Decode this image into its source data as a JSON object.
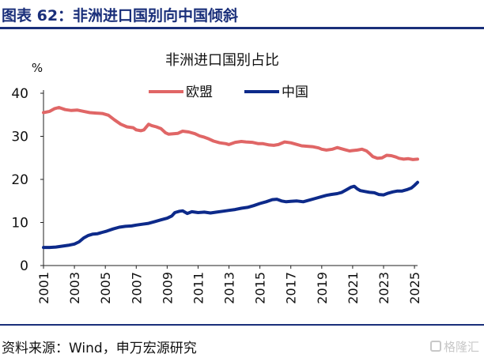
{
  "figure": {
    "title": "图表 62：非洲进口国别向中国倾斜",
    "source": "资料来源：Wind，申万宏源研究",
    "watermark": "格隆汇"
  },
  "colors": {
    "header": "#1a2f7a",
    "eu": "#e06666",
    "china": "#0d2a8a"
  },
  "chart_data": {
    "type": "line",
    "title": "非洲进口国别占比",
    "ylabel": "%",
    "xlabel": "",
    "ylim": [
      0,
      40
    ],
    "xlim": [
      2001,
      2025.2
    ],
    "yticks": [
      0,
      10,
      20,
      30,
      40
    ],
    "xticks": [
      "2001",
      "2003",
      "2005",
      "2007",
      "2009",
      "2011",
      "2013",
      "2015",
      "2017",
      "2019",
      "2021",
      "2023",
      "2025"
    ],
    "grid": false,
    "legend_position": "top-center",
    "series": [
      {
        "name": "欧盟",
        "x": [
          2001.0,
          2001.4,
          2001.7,
          2002.0,
          2002.4,
          2002.8,
          2003.2,
          2003.6,
          2004.0,
          2004.4,
          2004.8,
          2005.2,
          2005.6,
          2006.0,
          2006.4,
          2006.8,
          2007.0,
          2007.3,
          2007.5,
          2007.8,
          2008.0,
          2008.3,
          2008.6,
          2008.9,
          2009.1,
          2009.4,
          2009.7,
          2010.0,
          2010.4,
          2010.8,
          2011.1,
          2011.4,
          2011.7,
          2012.0,
          2012.4,
          2012.8,
          2013.0,
          2013.4,
          2013.8,
          2014.1,
          2014.5,
          2014.9,
          2015.2,
          2015.6,
          2015.9,
          2016.2,
          2016.6,
          2017.0,
          2017.3,
          2017.7,
          2018.0,
          2018.4,
          2018.8,
          2019.0,
          2019.3,
          2019.7,
          2020.0,
          2020.2,
          2020.5,
          2020.8,
          2021.0,
          2021.3,
          2021.6,
          2021.9,
          2022.1,
          2022.3,
          2022.6,
          2022.9,
          2023.2,
          2023.5,
          2023.8,
          2024.0,
          2024.3,
          2024.6,
          2024.9,
          2025.2
        ],
        "values": [
          35.5,
          35.8,
          36.4,
          36.7,
          36.2,
          36.0,
          36.1,
          35.8,
          35.5,
          35.4,
          35.3,
          34.9,
          33.8,
          32.8,
          32.2,
          32.0,
          31.5,
          31.3,
          31.5,
          32.8,
          32.5,
          32.2,
          31.8,
          30.8,
          30.5,
          30.6,
          30.7,
          31.2,
          31.0,
          30.6,
          30.1,
          29.8,
          29.4,
          28.9,
          28.5,
          28.3,
          28.1,
          28.6,
          28.8,
          28.7,
          28.6,
          28.3,
          28.3,
          28.0,
          27.9,
          28.1,
          28.7,
          28.5,
          28.2,
          27.8,
          27.7,
          27.6,
          27.3,
          27.0,
          26.8,
          27.0,
          27.4,
          27.2,
          26.9,
          26.6,
          26.7,
          26.8,
          27.0,
          26.6,
          26.0,
          25.3,
          24.9,
          25.0,
          25.6,
          25.5,
          25.2,
          24.9,
          24.7,
          24.8,
          24.6,
          24.7
        ]
      },
      {
        "name": "中国",
        "x": [
          2001.0,
          2001.4,
          2001.8,
          2002.2,
          2002.6,
          2003.0,
          2003.3,
          2003.6,
          2003.9,
          2004.2,
          2004.5,
          2004.8,
          2005.1,
          2005.5,
          2005.9,
          2006.3,
          2006.7,
          2007.0,
          2007.4,
          2007.8,
          2008.2,
          2008.6,
          2009.0,
          2009.3,
          2009.5,
          2009.8,
          2010.0,
          2010.3,
          2010.6,
          2011.0,
          2011.4,
          2011.8,
          2012.2,
          2012.6,
          2013.0,
          2013.4,
          2013.8,
          2014.2,
          2014.6,
          2015.0,
          2015.4,
          2015.8,
          2016.1,
          2016.4,
          2016.7,
          2017.0,
          2017.4,
          2017.8,
          2018.2,
          2018.6,
          2019.0,
          2019.3,
          2019.6,
          2020.0,
          2020.3,
          2020.6,
          2020.9,
          2021.1,
          2021.3,
          2021.5,
          2021.8,
          2022.1,
          2022.4,
          2022.7,
          2023.0,
          2023.3,
          2023.6,
          2023.9,
          2024.2,
          2024.5,
          2024.8,
          2025.0,
          2025.2
        ],
        "values": [
          4.2,
          4.2,
          4.3,
          4.5,
          4.7,
          5.0,
          5.5,
          6.4,
          7.0,
          7.3,
          7.4,
          7.7,
          8.0,
          8.5,
          8.9,
          9.1,
          9.2,
          9.4,
          9.6,
          9.8,
          10.2,
          10.6,
          11.0,
          11.5,
          12.3,
          12.6,
          12.7,
          12.1,
          12.5,
          12.3,
          12.4,
          12.2,
          12.4,
          12.6,
          12.8,
          13.0,
          13.3,
          13.5,
          13.9,
          14.4,
          14.8,
          15.3,
          15.4,
          15.0,
          14.8,
          14.9,
          15.0,
          14.8,
          15.2,
          15.6,
          16.0,
          16.3,
          16.5,
          16.7,
          17.0,
          17.6,
          18.2,
          18.4,
          17.8,
          17.4,
          17.2,
          17.0,
          16.9,
          16.5,
          16.4,
          16.8,
          17.1,
          17.3,
          17.3,
          17.6,
          18.0,
          18.6,
          19.3
        ]
      }
    ]
  }
}
